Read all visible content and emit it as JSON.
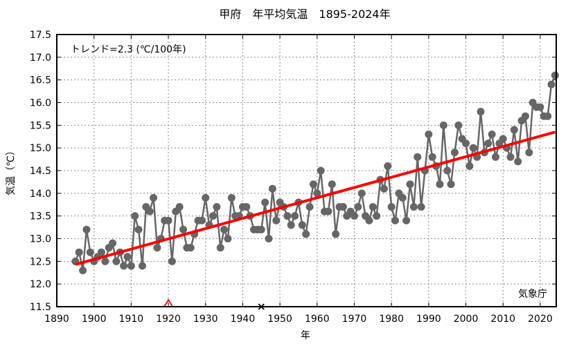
{
  "chart_data": {
    "type": "line",
    "title": "甲府　年平均気温　1895-2024年",
    "xlabel": "年",
    "ylabel": "気温（℃）",
    "xlim": [
      1890,
      2025
    ],
    "ylim": [
      11.5,
      17.5
    ],
    "xticks": [
      1890,
      1900,
      1910,
      1920,
      1930,
      1940,
      1950,
      1960,
      1970,
      1980,
      1990,
      2000,
      2010,
      2020
    ],
    "yticks": [
      "11.5",
      "12.0",
      "12.5",
      "13.0",
      "13.5",
      "14.0",
      "14.5",
      "15.0",
      "15.5",
      "16.0",
      "16.5",
      "17.0",
      "17.5"
    ],
    "grid": true,
    "annotations": {
      "trend_text": "トレンド=2.3 (℃/100年)",
      "source_text": "気象庁"
    },
    "series": [
      {
        "name": "年平均気温",
        "color": "#666666",
        "x": [
          1895,
          1896,
          1897,
          1898,
          1899,
          1900,
          1901,
          1902,
          1903,
          1904,
          1905,
          1906,
          1907,
          1908,
          1909,
          1910,
          1911,
          1912,
          1913,
          1914,
          1915,
          1916,
          1917,
          1918,
          1919,
          1920,
          1921,
          1922,
          1923,
          1924,
          1925,
          1926,
          1927,
          1928,
          1929,
          1930,
          1931,
          1932,
          1933,
          1934,
          1935,
          1936,
          1937,
          1938,
          1939,
          1940,
          1941,
          1942,
          1943,
          1944,
          1945,
          1946,
          1947,
          1948,
          1949,
          1950,
          1951,
          1952,
          1953,
          1954,
          1955,
          1956,
          1957,
          1958,
          1959,
          1960,
          1961,
          1962,
          1963,
          1964,
          1965,
          1966,
          1967,
          1968,
          1969,
          1970,
          1971,
          1972,
          1973,
          1974,
          1975,
          1976,
          1977,
          1978,
          1979,
          1980,
          1981,
          1982,
          1983,
          1984,
          1985,
          1986,
          1987,
          1988,
          1989,
          1990,
          1991,
          1992,
          1993,
          1994,
          1995,
          1996,
          1997,
          1998,
          1999,
          2000,
          2001,
          2002,
          2003,
          2004,
          2005,
          2006,
          2007,
          2008,
          2009,
          2010,
          2011,
          2012,
          2013,
          2014,
          2015,
          2016,
          2017,
          2018,
          2019,
          2020,
          2021,
          2022,
          2023,
          2024
        ],
        "values": [
          12.5,
          12.7,
          12.3,
          13.2,
          12.7,
          12.5,
          12.6,
          12.7,
          12.5,
          12.8,
          12.9,
          12.5,
          12.7,
          12.4,
          12.6,
          12.4,
          13.5,
          13.2,
          12.4,
          13.7,
          13.6,
          13.9,
          12.8,
          13.0,
          13.4,
          13.4,
          12.5,
          13.6,
          13.7,
          13.2,
          12.8,
          12.8,
          13.1,
          13.4,
          13.4,
          13.9,
          13.3,
          13.5,
          13.7,
          12.8,
          13.2,
          13.0,
          13.9,
          13.5,
          13.5,
          13.7,
          13.7,
          13.5,
          13.2,
          13.2,
          13.2,
          13.8,
          13.0,
          14.1,
          13.4,
          13.8,
          13.7,
          13.5,
          13.3,
          13.5,
          13.8,
          13.3,
          13.1,
          13.7,
          14.2,
          14.0,
          14.5,
          13.6,
          13.6,
          14.2,
          13.1,
          13.7,
          13.7,
          13.5,
          13.6,
          13.5,
          13.7,
          14.0,
          13.5,
          13.4,
          13.7,
          13.5,
          14.3,
          14.1,
          14.6,
          13.7,
          13.4,
          14.0,
          13.9,
          13.4,
          14.2,
          13.7,
          14.8,
          13.7,
          14.5,
          15.3,
          14.8,
          14.6,
          14.2,
          15.5,
          14.5,
          14.2,
          14.9,
          15.5,
          15.2,
          15.1,
          14.6,
          15.0,
          14.8,
          15.8,
          14.9,
          15.1,
          15.3,
          14.8,
          15.1,
          15.2,
          15.0,
          14.8,
          15.4,
          14.7,
          15.6,
          15.7,
          14.9,
          16.0,
          15.9,
          15.9,
          15.7,
          15.7,
          16.4,
          16.6
        ]
      },
      {
        "name": "トレンド",
        "color": "#ff0000",
        "x": [
          1895,
          2024
        ],
        "values": [
          12.43,
          15.35
        ]
      }
    ],
    "markers": [
      {
        "name": "station-relocation-marker",
        "symbol": "triangle",
        "color": "#ff0000",
        "x": 1920
      },
      {
        "name": "data-discontinuity-marker",
        "symbol": "cross",
        "color": "#000000",
        "x": 1945
      }
    ]
  }
}
